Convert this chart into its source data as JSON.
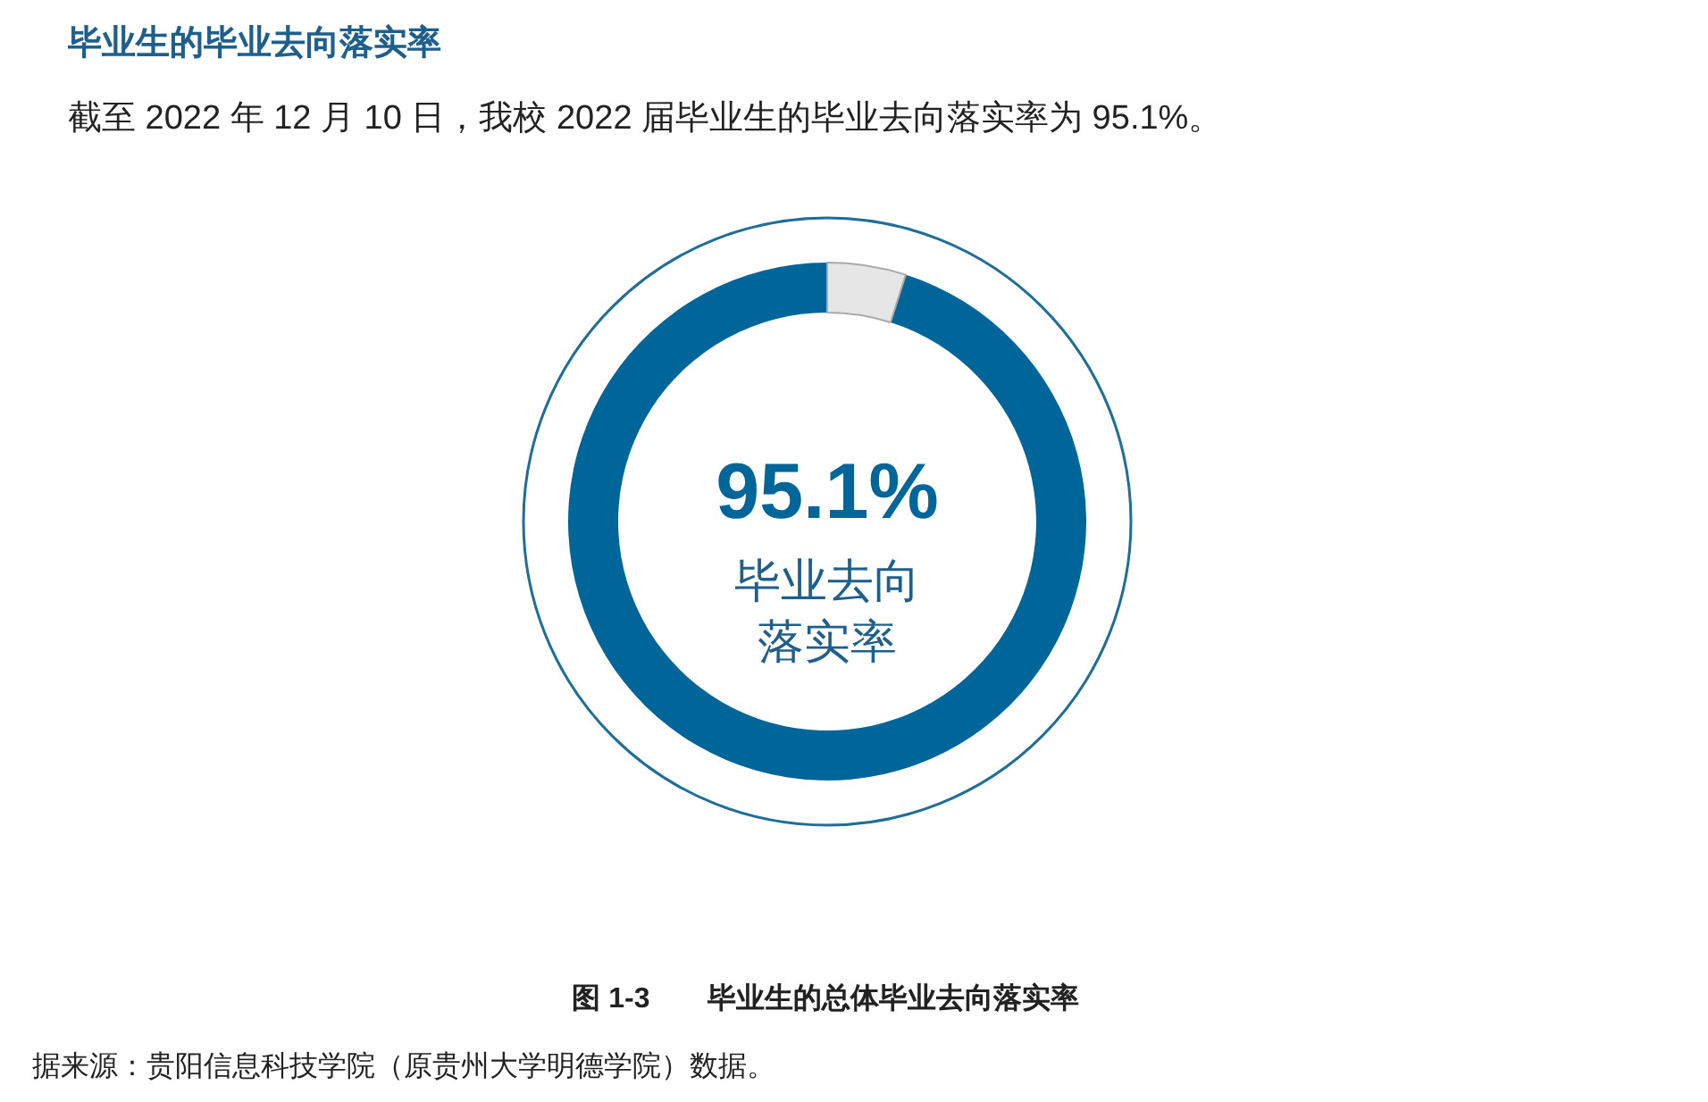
{
  "chart_data": {
    "type": "donut",
    "title": "毕业生的毕业去向落实率",
    "subtitle": "截至 2022 年 12 月 10 日，我校 2022 届毕业生的毕业去向落实率为 95.1%。",
    "categories": [
      null,
      null
    ],
    "values": [
      95.1,
      4.9
    ],
    "colors": [
      "#006699",
      "#e6e6e6"
    ],
    "value_labels": [
      "95.1%",
      null
    ],
    "annotations": [
      "毕业去向落实率",
      "图 1-3　　毕业生的总体毕业去向落实率",
      "据来源：贵阳信息科技学院（原贵州大学明德学院）数据。"
    ]
  }
}
